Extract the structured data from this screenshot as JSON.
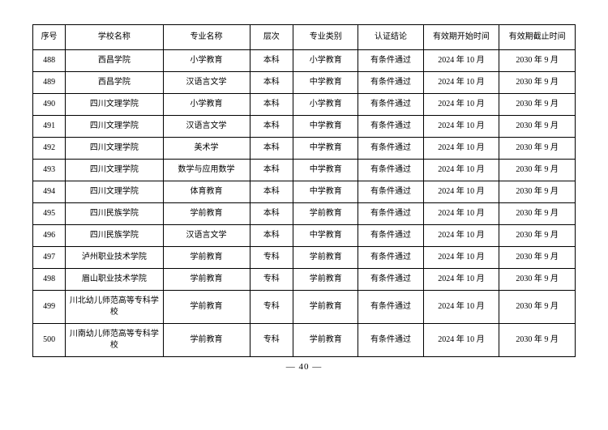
{
  "table": {
    "headers": [
      "序号",
      "学校名称",
      "专业名称",
      "层次",
      "专业类别",
      "认证结论",
      "有效期开始时间",
      "有效期截止时间"
    ],
    "rows": [
      [
        "488",
        "西昌学院",
        "小学教育",
        "本科",
        "小学教育",
        "有条件通过",
        "2024 年 10 月",
        "2030 年 9 月"
      ],
      [
        "489",
        "西昌学院",
        "汉语言文学",
        "本科",
        "中学教育",
        "有条件通过",
        "2024 年 10 月",
        "2030 年 9 月"
      ],
      [
        "490",
        "四川文理学院",
        "小学教育",
        "本科",
        "小学教育",
        "有条件通过",
        "2024 年 10 月",
        "2030 年 9 月"
      ],
      [
        "491",
        "四川文理学院",
        "汉语言文学",
        "本科",
        "中学教育",
        "有条件通过",
        "2024 年 10 月",
        "2030 年 9 月"
      ],
      [
        "492",
        "四川文理学院",
        "美术学",
        "本科",
        "中学教育",
        "有条件通过",
        "2024 年 10 月",
        "2030 年 9 月"
      ],
      [
        "493",
        "四川文理学院",
        "数学与应用数学",
        "本科",
        "中学教育",
        "有条件通过",
        "2024 年 10 月",
        "2030 年 9 月"
      ],
      [
        "494",
        "四川文理学院",
        "体育教育",
        "本科",
        "中学教育",
        "有条件通过",
        "2024 年 10 月",
        "2030 年 9 月"
      ],
      [
        "495",
        "四川民族学院",
        "学前教育",
        "本科",
        "学前教育",
        "有条件通过",
        "2024 年 10 月",
        "2030 年 9 月"
      ],
      [
        "496",
        "四川民族学院",
        "汉语言文学",
        "本科",
        "中学教育",
        "有条件通过",
        "2024 年 10 月",
        "2030 年 9 月"
      ],
      [
        "497",
        "泸州职业技术学院",
        "学前教育",
        "专科",
        "学前教育",
        "有条件通过",
        "2024 年 10 月",
        "2030 年 9 月"
      ],
      [
        "498",
        "眉山职业技术学院",
        "学前教育",
        "专科",
        "学前教育",
        "有条件通过",
        "2024 年 10 月",
        "2030 年 9 月"
      ],
      [
        "499",
        "川北幼儿师范高等专科学校",
        "学前教育",
        "专科",
        "学前教育",
        "有条件通过",
        "2024 年 10 月",
        "2030 年 9 月"
      ],
      [
        "500",
        "川南幼儿师范高等专科学校",
        "学前教育",
        "专科",
        "学前教育",
        "有条件通过",
        "2024 年 10 月",
        "2030 年 9 月"
      ]
    ]
  },
  "pageNumber": "— 40 —"
}
